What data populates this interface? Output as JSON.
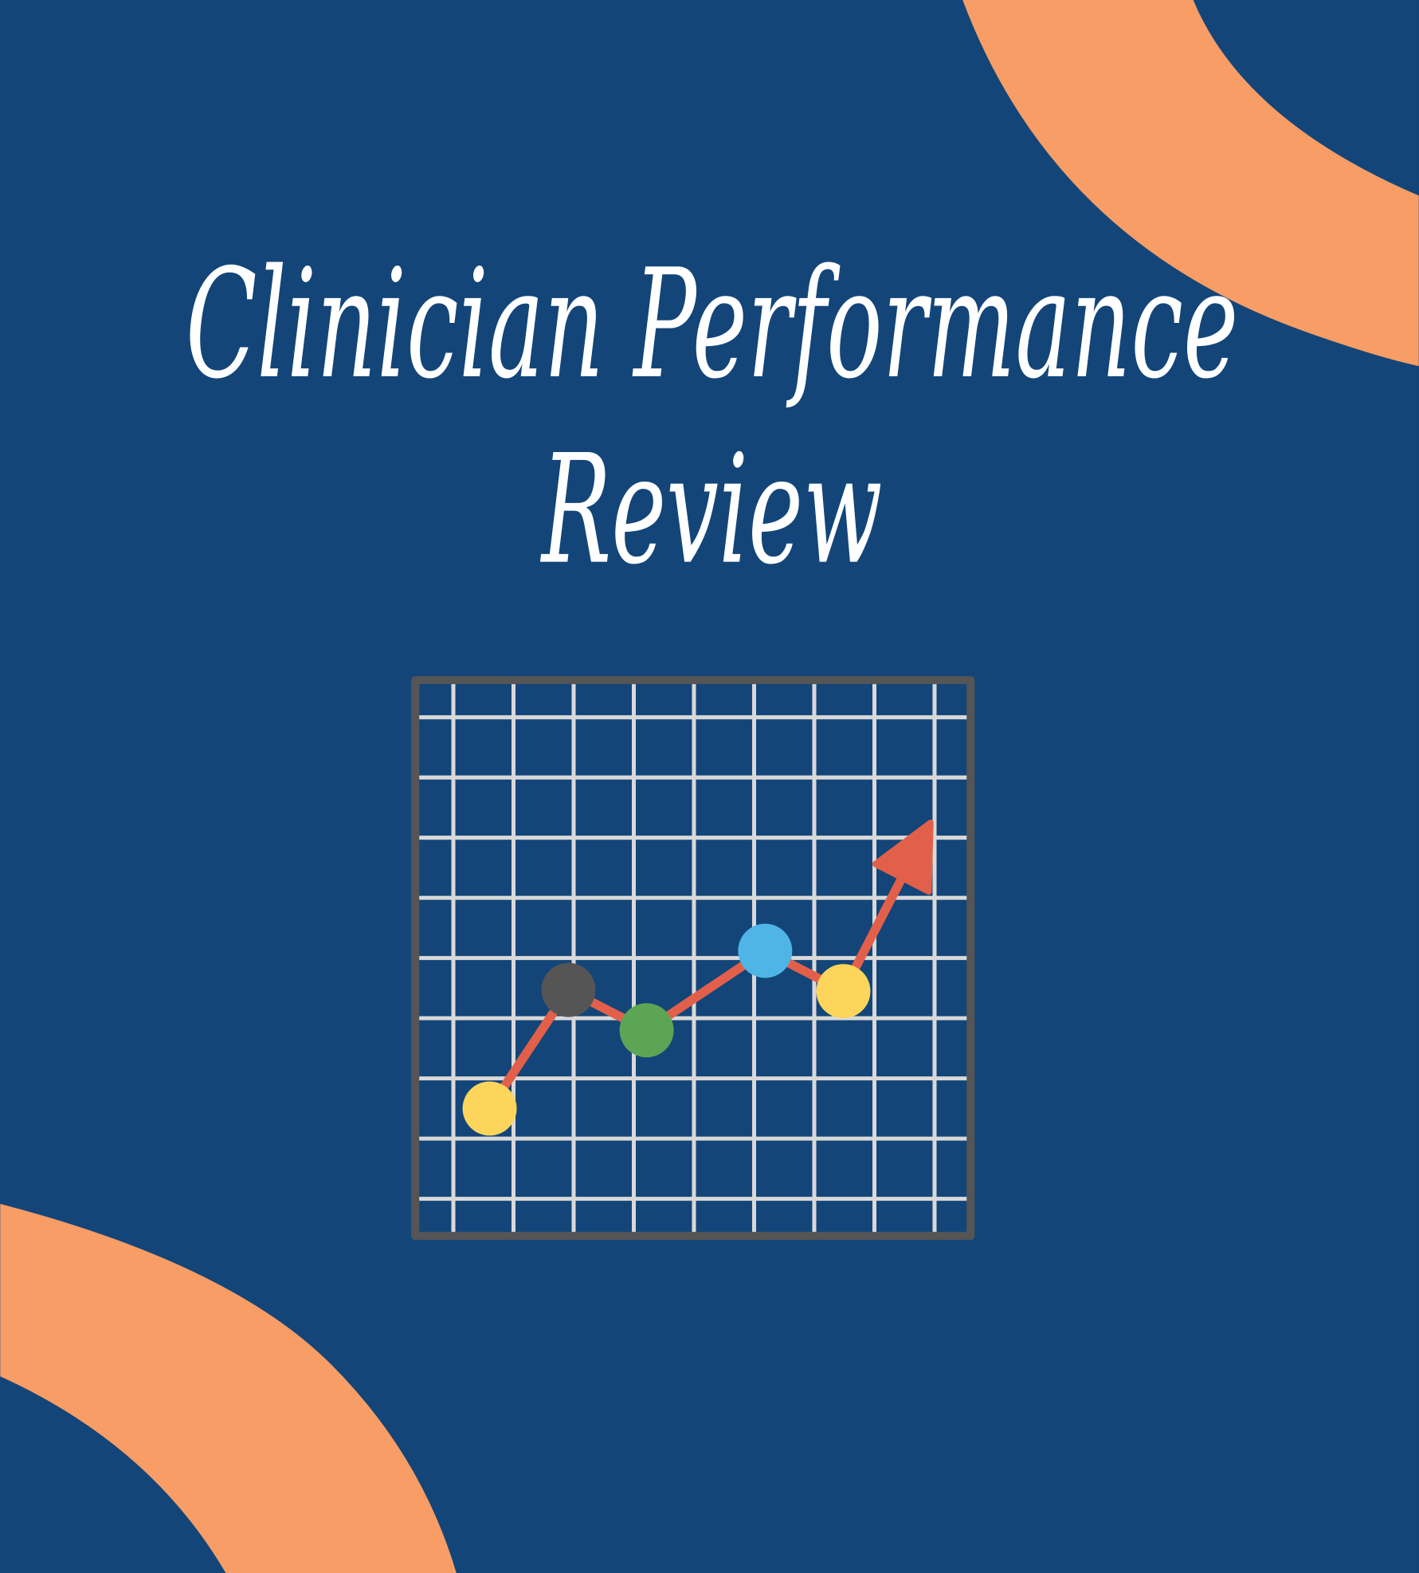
{
  "colors": {
    "background": "#134579",
    "accent_arc": "#F79D65",
    "frame": "#555555",
    "grid": "#D9D9D9",
    "trend_line": "#E2604A"
  },
  "title": {
    "line1": "Clinician Performance",
    "line2": "Review"
  },
  "chart_data": {
    "type": "line",
    "grid": true,
    "xlim": [
      0,
      9.3
    ],
    "ylim": [
      0,
      9.3
    ],
    "points": [
      {
        "x": 1.27,
        "y": 2.15,
        "color": "#FDD55B"
      },
      {
        "x": 2.58,
        "y": 4.12,
        "color": "#555555"
      },
      {
        "x": 3.88,
        "y": 3.45,
        "color": "#5BA555"
      },
      {
        "x": 5.85,
        "y": 4.77,
        "color": "#4EB5E6"
      },
      {
        "x": 7.15,
        "y": 4.1,
        "color": "#FDD55B"
      }
    ],
    "arrow_end": {
      "x": 8.6,
      "y": 6.9
    },
    "trend": "up"
  }
}
